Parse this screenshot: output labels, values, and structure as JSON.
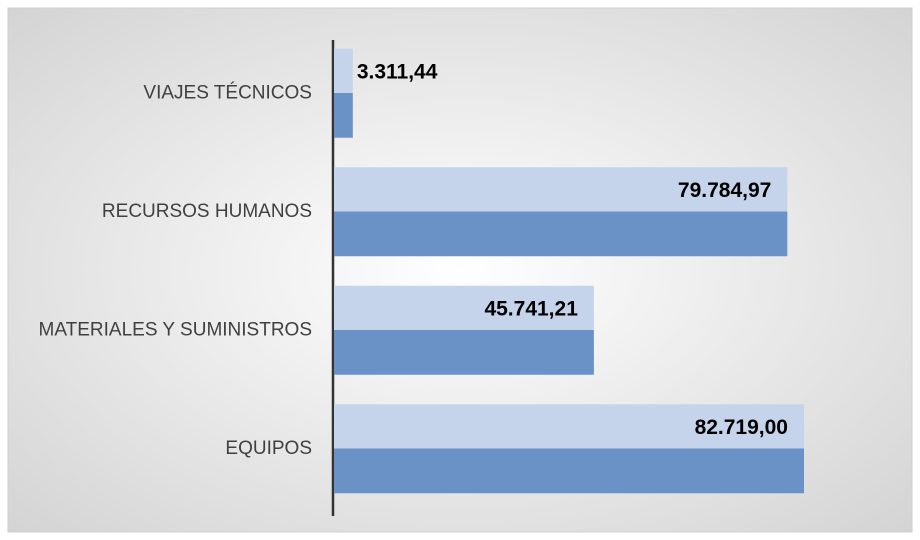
{
  "chart_data": {
    "type": "bar",
    "orientation": "horizontal",
    "categories": [
      "VIAJES TÉCNICOS",
      "RECURSOS HUMANOS",
      "MATERIALES Y SUMINISTROS",
      "EQUIPOS"
    ],
    "values": [
      3311.44,
      79784.97,
      45741.21,
      82719.0
    ],
    "value_labels": [
      "3.311,44",
      "79.784,97",
      "45.741,21",
      "82.719,00"
    ],
    "colors": [
      "#c5d4ea",
      "#6a92c6"
    ]
  }
}
